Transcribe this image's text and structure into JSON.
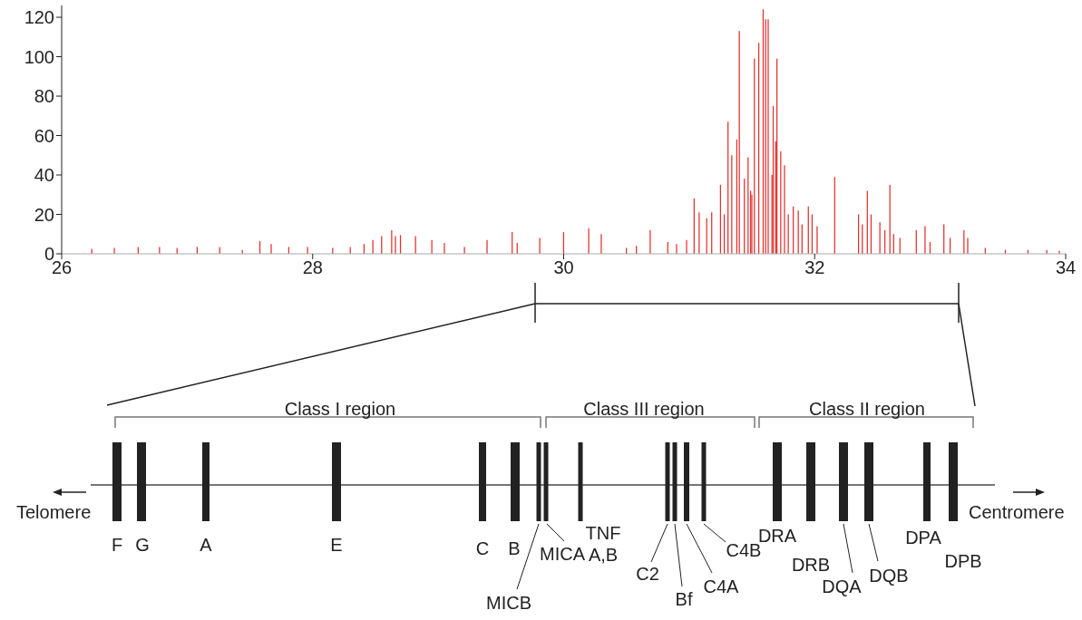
{
  "chart_data": {
    "type": "bar",
    "x": [
      26.24,
      26.42,
      26.61,
      26.78,
      26.92,
      27.08,
      27.26,
      27.44,
      27.58,
      27.67,
      27.81,
      27.96,
      28.16,
      28.3,
      28.41,
      28.48,
      28.55,
      28.63,
      28.66,
      28.7,
      28.82,
      28.95,
      29.05,
      29.21,
      29.39,
      29.59,
      29.63,
      29.81,
      30.0,
      30.2,
      30.3,
      30.5,
      30.58,
      30.69,
      30.83,
      30.9,
      30.98,
      31.04,
      31.08,
      31.14,
      31.18,
      31.25,
      31.28,
      31.31,
      31.34,
      31.38,
      31.4,
      31.44,
      31.47,
      31.49,
      31.5,
      31.52,
      31.555,
      31.59,
      31.61,
      31.63,
      31.66,
      31.67,
      31.69,
      31.7,
      31.73,
      31.76,
      31.79,
      31.83,
      31.87,
      31.9,
      31.95,
      31.98,
      32.02,
      32.16,
      32.35,
      32.38,
      32.42,
      32.45,
      32.52,
      32.56,
      32.6,
      32.63,
      32.68,
      32.81,
      32.88,
      32.92,
      33.03,
      33.08,
      33.19,
      33.22,
      33.36,
      33.52,
      33.7,
      33.85,
      33.95
    ],
    "values": [
      2.5,
      3,
      3.5,
      3.5,
      3,
      3.5,
      3.5,
      2,
      6.5,
      5,
      3.5,
      3.5,
      3,
      3.5,
      5,
      7,
      9,
      12,
      9,
      9.5,
      9,
      7,
      5.5,
      3.5,
      7,
      11,
      5.5,
      8,
      11,
      13,
      10,
      3,
      4,
      12,
      6,
      5,
      7,
      28,
      21,
      18,
      21,
      35,
      20,
      67,
      50,
      58,
      113,
      38,
      49,
      32,
      30,
      99,
      107,
      124,
      119,
      119,
      40,
      75,
      57,
      99,
      52,
      45,
      20,
      24,
      22,
      15,
      24,
      20,
      14,
      39,
      20,
      15,
      32,
      20,
      16,
      12,
      35,
      10,
      8,
      12,
      14,
      6,
      15,
      8,
      12,
      8,
      3,
      2,
      2,
      2,
      1.5
    ],
    "color": "#e2302d",
    "xlim": [
      26,
      34
    ],
    "xticks": [
      26,
      28,
      30,
      32,
      34
    ],
    "ylim": [
      0,
      126
    ],
    "yticks": [
      0,
      20,
      40,
      60,
      80,
      100,
      120
    ],
    "grid": false,
    "legend": false,
    "annotations": [
      "Class I region",
      "Class III region",
      "Class II region",
      "Telomere",
      "Centromere",
      "F",
      "G",
      "A",
      "E",
      "C",
      "B",
      "MICB",
      "MICA",
      "TNF A,B",
      "C2",
      "Bf",
      "C4A",
      "C4B",
      "DRA",
      "DRB",
      "DQA",
      "DQB",
      "DPA",
      "DPB"
    ]
  }
}
